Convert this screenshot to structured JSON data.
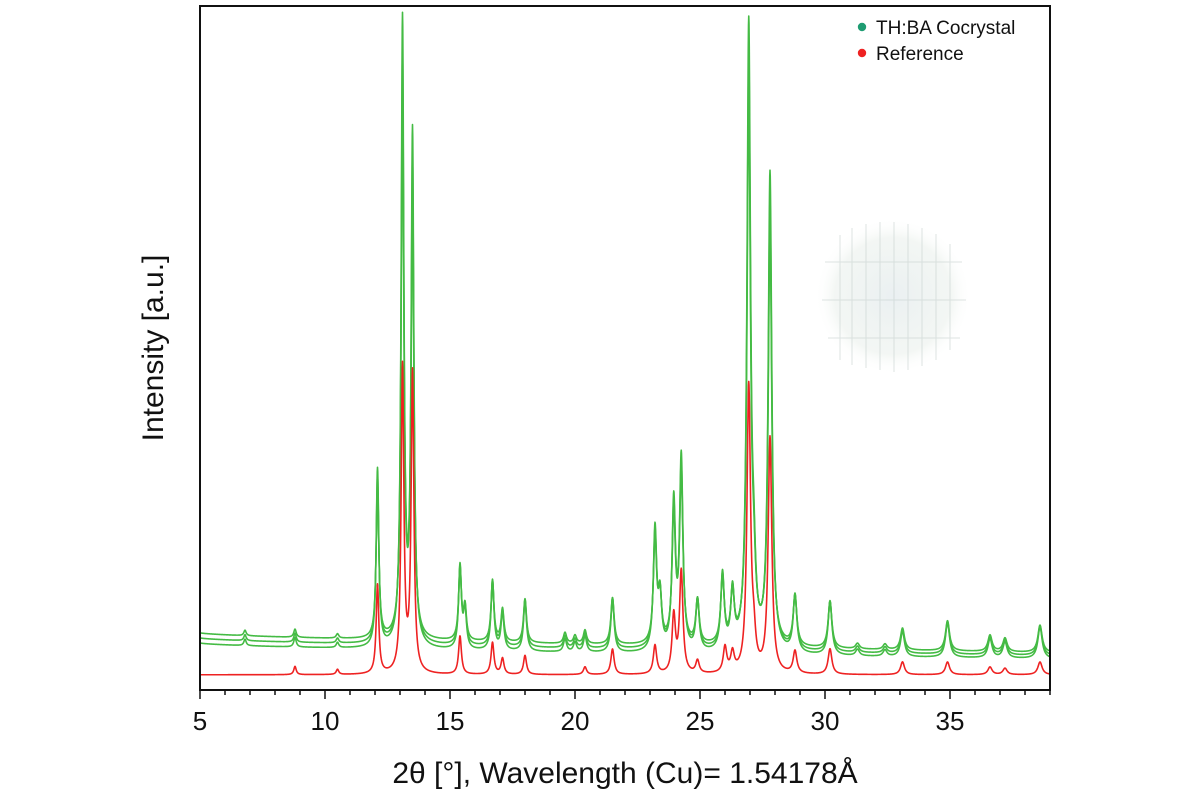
{
  "chart_data": {
    "type": "line",
    "title": "",
    "xlabel": "2θ [°], Wavelength (Cu)= 1.54178Å",
    "ylabel": "Intensity [a.u.]",
    "xlim": [
      5,
      39
    ],
    "ylim": [
      0,
      100
    ],
    "x_ticks": [
      5,
      10,
      15,
      20,
      25,
      30,
      35
    ],
    "x_tick_labels": [
      "5",
      "10",
      "15",
      "20",
      "25",
      "30",
      "35"
    ],
    "y_ticks_shown": false,
    "grid": false,
    "legend": {
      "position": "top-right",
      "entries": [
        {
          "label": "TH:BA Cocrystal",
          "color": "#1e9c72"
        },
        {
          "label": "Reference",
          "color": "#ee2222"
        }
      ]
    },
    "series": [
      {
        "name": "TH:BA Cocrystal",
        "color": "#44bb44",
        "replicates": 3,
        "baseline_start": 5.5,
        "baseline_end": 3.0,
        "replicate_offsets": [
          0,
          0.8,
          1.6
        ],
        "peaks": [
          {
            "x": 6.8,
            "h": 1.0
          },
          {
            "x": 8.8,
            "h": 1.5
          },
          {
            "x": 10.5,
            "h": 0.8
          },
          {
            "x": 12.1,
            "h": 28
          },
          {
            "x": 13.1,
            "h": 98
          },
          {
            "x": 13.5,
            "h": 80
          },
          {
            "x": 15.4,
            "h": 13
          },
          {
            "x": 15.6,
            "h": 6
          },
          {
            "x": 16.7,
            "h": 11
          },
          {
            "x": 17.1,
            "h": 6
          },
          {
            "x": 18.0,
            "h": 8
          },
          {
            "x": 19.6,
            "h": 2
          },
          {
            "x": 20.0,
            "h": 1.5
          },
          {
            "x": 20.4,
            "h": 2.5
          },
          {
            "x": 21.5,
            "h": 8.5
          },
          {
            "x": 23.2,
            "h": 19
          },
          {
            "x": 23.4,
            "h": 8
          },
          {
            "x": 23.95,
            "h": 23
          },
          {
            "x": 24.25,
            "h": 30
          },
          {
            "x": 24.9,
            "h": 8
          },
          {
            "x": 25.9,
            "h": 12
          },
          {
            "x": 26.3,
            "h": 9
          },
          {
            "x": 26.95,
            "h": 98
          },
          {
            "x": 27.15,
            "h": 9
          },
          {
            "x": 27.8,
            "h": 75
          },
          {
            "x": 28.8,
            "h": 9
          },
          {
            "x": 30.2,
            "h": 8.5
          },
          {
            "x": 31.3,
            "h": 1
          },
          {
            "x": 32.4,
            "h": 1
          },
          {
            "x": 33.1,
            "h": 4
          },
          {
            "x": 34.9,
            "h": 5.5
          },
          {
            "x": 36.6,
            "h": 3
          },
          {
            "x": 37.2,
            "h": 2.5
          },
          {
            "x": 38.6,
            "h": 5
          }
        ]
      },
      {
        "name": "Reference",
        "color": "#ee2222",
        "replicates": 1,
        "baseline_start": 0.5,
        "baseline_end": 0.5,
        "replicate_offsets": [
          0
        ],
        "peaks": [
          {
            "x": 8.8,
            "h": 1.3
          },
          {
            "x": 10.5,
            "h": 0.8
          },
          {
            "x": 12.1,
            "h": 14
          },
          {
            "x": 13.1,
            "h": 48
          },
          {
            "x": 13.5,
            "h": 47
          },
          {
            "x": 15.4,
            "h": 6
          },
          {
            "x": 16.7,
            "h": 5
          },
          {
            "x": 17.1,
            "h": 2.5
          },
          {
            "x": 18.0,
            "h": 3
          },
          {
            "x": 20.4,
            "h": 1.2
          },
          {
            "x": 21.5,
            "h": 4
          },
          {
            "x": 23.2,
            "h": 4.5
          },
          {
            "x": 23.95,
            "h": 9
          },
          {
            "x": 24.25,
            "h": 16
          },
          {
            "x": 24.9,
            "h": 2
          },
          {
            "x": 26.0,
            "h": 4
          },
          {
            "x": 26.3,
            "h": 3
          },
          {
            "x": 26.95,
            "h": 45
          },
          {
            "x": 27.15,
            "h": 4
          },
          {
            "x": 27.8,
            "h": 37
          },
          {
            "x": 28.8,
            "h": 3.5
          },
          {
            "x": 30.2,
            "h": 4
          },
          {
            "x": 33.1,
            "h": 2
          },
          {
            "x": 34.9,
            "h": 2
          },
          {
            "x": 36.6,
            "h": 1.2
          },
          {
            "x": 37.2,
            "h": 1
          },
          {
            "x": 38.6,
            "h": 2
          }
        ]
      }
    ]
  }
}
